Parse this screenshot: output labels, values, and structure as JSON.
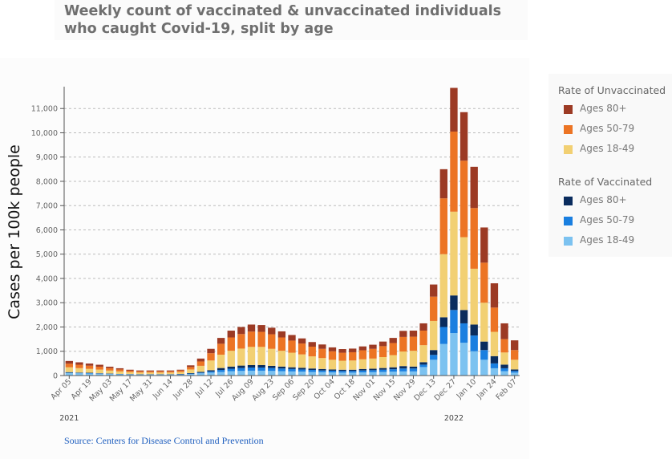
{
  "title": "Weekly count of vaccinated & unvaccinated individuals who caught Covid-19, split by age",
  "source": "Source: Centers for Disease Control and Prevention",
  "colors": {
    "unvax_80": "#9c3a24",
    "unvax_50": "#ec7424",
    "unvax_18": "#f2d073",
    "vax_80": "#0a2c5e",
    "vax_50": "#1a7fe0",
    "vax_18": "#7cc2f0",
    "grid": "#bbbbbb",
    "axis": "#555555",
    "tick_text": "#666666"
  },
  "legend": {
    "unvaccinated": {
      "title": "Rate of Unvaccinated",
      "items": [
        {
          "label": "Ages 80+",
          "color": "#9c3a24"
        },
        {
          "label": "Ages 50-79",
          "color": "#ec7424"
        },
        {
          "label": "Ages 18-49",
          "color": "#f2d073"
        }
      ]
    },
    "vaccinated": {
      "title": "Rate of Vaccinated",
      "items": [
        {
          "label": "Ages 80+",
          "color": "#0a2c5e"
        },
        {
          "label": "Ages 50-79",
          "color": "#1a7fe0"
        },
        {
          "label": "Ages 18-49",
          "color": "#7cc2f0"
        }
      ]
    }
  },
  "chart_data": {
    "type": "bar",
    "stacked": true,
    "title": "Weekly count of vaccinated & unvaccinated individuals who caught Covid-19, split by age",
    "xlabel": "",
    "ylabel": "Cases per 100k people",
    "ylim": [
      0,
      11900
    ],
    "yticks": [
      0,
      1000,
      2000,
      3000,
      4000,
      5000,
      6000,
      7000,
      8000,
      9000,
      10000,
      11000
    ],
    "ytick_labels": [
      "0",
      "1,000",
      "2,000",
      "3,000",
      "4,000",
      "5,000",
      "6,000",
      "7,000",
      "8,000",
      "9,000",
      "10,000",
      "11,000"
    ],
    "grid": true,
    "legend_position": "right",
    "categories": [
      "Apr 05",
      "Apr 12",
      "Apr 19",
      "Apr 26",
      "May 03",
      "May 10",
      "May 17",
      "May 24",
      "May 31",
      "Jun 07",
      "Jun 14",
      "Jun 21",
      "Jun 28",
      "Jul 05",
      "Jul 12",
      "Jul 19",
      "Jul 26",
      "Aug 02",
      "Aug 09",
      "Aug 16",
      "Aug 23",
      "Aug 30",
      "Sep 06",
      "Sep 13",
      "Sep 20",
      "Sep 27",
      "Oct 04",
      "Oct 11",
      "Oct 18",
      "Oct 25",
      "Nov 01",
      "Nov 08",
      "Nov 15",
      "Nov 22",
      "Nov 29",
      "Dec 06",
      "Dec 13",
      "Dec 20",
      "Dec 27",
      "Jan 03",
      "Jan 10",
      "Jan 17",
      "Jan 24",
      "Jan 31",
      "Feb 07"
    ],
    "tick_labels": [
      "Apr 05",
      "Apr 19",
      "May 03",
      "May 17",
      "May 31",
      "Jun 14",
      "Jun 28",
      "Jul 12",
      "Jul 26",
      "Aug 09",
      "Aug 23",
      "Sep 06",
      "Sep 20",
      "Oct 04",
      "Oct 18",
      "Nov 01",
      "Nov 15",
      "Nov 29",
      "Dec 13",
      "Dec 27",
      "Jan 10",
      "Jan 24",
      "Feb 07"
    ],
    "year_labels": [
      {
        "label": "2021",
        "category": "Apr 05"
      },
      {
        "label": "2022",
        "category": "Dec 27"
      }
    ],
    "series": [
      {
        "name": "Ages 18-49 (vaccinated)",
        "color": "#7cc2f0",
        "values": [
          100,
          90,
          80,
          70,
          60,
          50,
          40,
          35,
          35,
          35,
          35,
          40,
          60,
          90,
          120,
          150,
          180,
          190,
          200,
          200,
          190,
          180,
          170,
          160,
          150,
          140,
          130,
          120,
          120,
          130,
          140,
          150,
          160,
          170,
          170,
          350,
          650,
          1300,
          1750,
          1350,
          1000,
          650,
          300,
          180,
          120
        ]
      },
      {
        "name": "Ages 50-79 (vaccinated)",
        "color": "#1a7fe0",
        "values": [
          20,
          20,
          20,
          15,
          15,
          10,
          10,
          10,
          10,
          10,
          10,
          10,
          20,
          30,
          50,
          80,
          100,
          120,
          130,
          130,
          120,
          110,
          100,
          90,
          80,
          70,
          70,
          70,
          70,
          80,
          80,
          90,
          100,
          120,
          120,
          100,
          200,
          700,
          950,
          800,
          650,
          400,
          200,
          120,
          70
        ]
      },
      {
        "name": "Ages 80+ (vaccinated)",
        "color": "#0a2c5e",
        "values": [
          20,
          15,
          15,
          10,
          10,
          10,
          10,
          10,
          10,
          10,
          10,
          15,
          20,
          30,
          50,
          80,
          90,
          100,
          100,
          100,
          90,
          80,
          70,
          70,
          60,
          60,
          50,
          50,
          50,
          60,
          60,
          70,
          80,
          100,
          80,
          100,
          200,
          400,
          600,
          550,
          450,
          350,
          300,
          150,
          60
        ]
      },
      {
        "name": "Ages 18-49 (unvaccinated)",
        "color": "#f2d073",
        "values": [
          200,
          180,
          160,
          150,
          120,
          100,
          80,
          70,
          70,
          70,
          70,
          80,
          150,
          250,
          400,
          550,
          650,
          700,
          750,
          750,
          700,
          650,
          600,
          550,
          500,
          450,
          400,
          370,
          380,
          400,
          420,
          450,
          500,
          600,
          650,
          700,
          1200,
          2600,
          3450,
          3000,
          2300,
          1600,
          1000,
          500,
          400
        ]
      },
      {
        "name": "Ages 50-79 (unvaccinated)",
        "color": "#ec7424",
        "values": [
          150,
          140,
          130,
          120,
          100,
          80,
          60,
          50,
          50,
          50,
          50,
          60,
          100,
          180,
          300,
          450,
          550,
          600,
          630,
          620,
          600,
          550,
          500,
          450,
          400,
          380,
          350,
          330,
          340,
          370,
          400,
          450,
          500,
          600,
          580,
          600,
          1000,
          2300,
          3300,
          3150,
          2500,
          1650,
          1000,
          550,
          400
        ]
      },
      {
        "name": "Ages 80+ (unvaccinated)",
        "color": "#9c3a24",
        "values": [
          110,
          100,
          90,
          80,
          60,
          50,
          40,
          35,
          35,
          35,
          35,
          35,
          70,
          120,
          180,
          240,
          280,
          290,
          290,
          280,
          270,
          250,
          230,
          210,
          190,
          180,
          160,
          150,
          150,
          160,
          170,
          190,
          210,
          250,
          250,
          300,
          500,
          1200,
          1800,
          2000,
          1700,
          1450,
          1000,
          650,
          400
        ]
      }
    ]
  }
}
